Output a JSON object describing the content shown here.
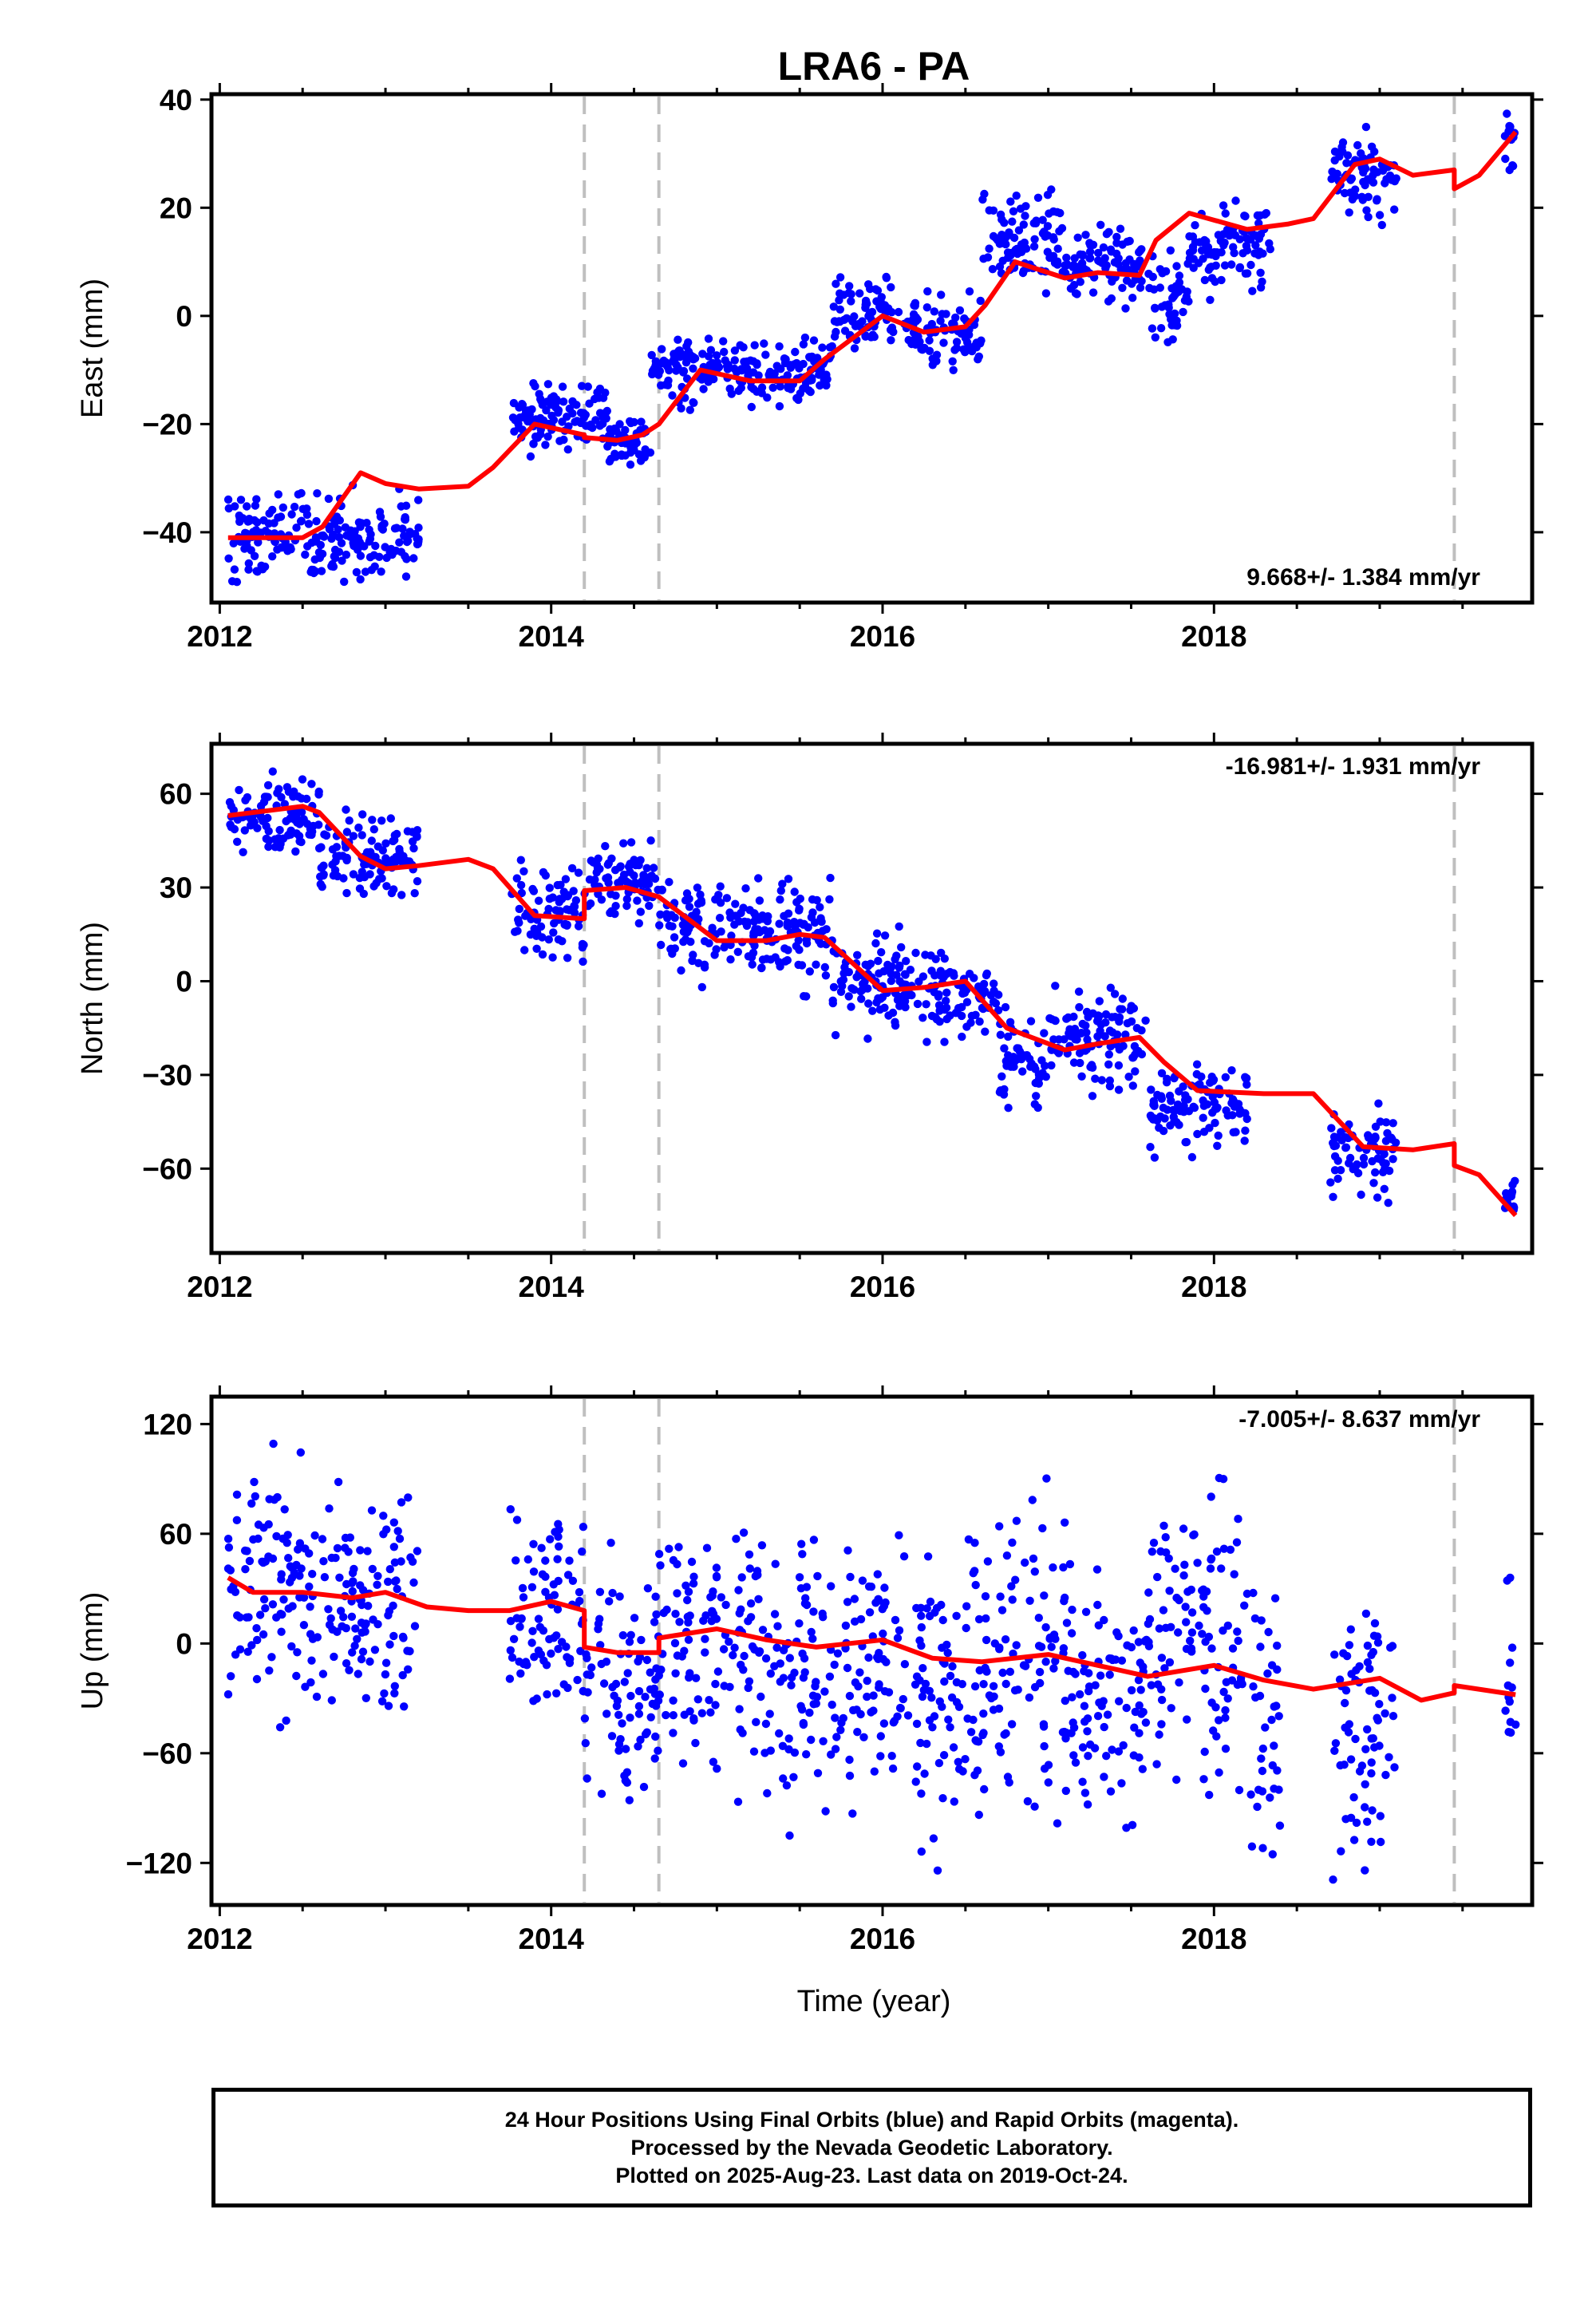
{
  "title": "LRA6 - PA",
  "xlabel": "Time (year)",
  "caption": [
    "24 Hour Positions Using Final Orbits (blue) and Rapid Orbits (magenta).",
    "Processed by the Nevada Geodetic Laboratory.",
    "Plotted on 2025-Aug-23. Last data on 2019-Oct-24."
  ],
  "colors": {
    "points": "#0000ff",
    "model": "#ff0000",
    "equipment_change": "#bfbfbf",
    "axes": "#000000"
  },
  "chart_data": [
    {
      "type": "scatter",
      "ylabel": "East (mm)",
      "rate_label": "9.668+/- 1.384 mm/yr",
      "rate_label_position": "bottom-right",
      "xlim": [
        2011.95,
        2019.92
      ],
      "ylim": [
        -53,
        41
      ],
      "xticks": [
        2012,
        2014,
        2016,
        2018
      ],
      "yticks": [
        -40,
        -20,
        0,
        20,
        40
      ],
      "equipment_changes": [
        2014.2,
        2014.65,
        2019.45
      ],
      "series": [
        {
          "kind": "points",
          "segments": [
            [
              2012.05,
              2013.2,
              -41,
              4
            ],
            [
              2013.75,
              2014.35,
              -18,
              3
            ],
            [
              2014.35,
              2014.6,
              -23,
              2.5
            ],
            [
              2014.6,
              2015.3,
              -10,
              3
            ],
            [
              2015.3,
              2015.7,
              -10,
              3
            ],
            [
              2015.7,
              2016.1,
              1,
              3
            ],
            [
              2016.1,
              2016.6,
              -3,
              3
            ],
            [
              2016.6,
              2017.1,
              14,
              4
            ],
            [
              2017.1,
              2017.6,
              9,
              3
            ],
            [
              2017.6,
              2017.85,
              3,
              4
            ],
            [
              2017.85,
              2018.35,
              13,
              4
            ],
            [
              2018.7,
              2019.1,
              26,
              4
            ],
            [
              2019.75,
              2019.82,
              32,
              3
            ]
          ]
        },
        {
          "kind": "model",
          "x": [
            2012.05,
            2012.5,
            2012.62,
            2012.85,
            2013.0,
            2013.2,
            2013.5,
            2013.65,
            2013.9,
            2014.2,
            2014.2,
            2014.4,
            2014.55,
            2014.65,
            2014.65,
            2014.9,
            2015.2,
            2015.5,
            2015.65,
            2016.0,
            2016.25,
            2016.5,
            2016.62,
            2016.8,
            2017.1,
            2017.3,
            2017.55,
            2017.65,
            2017.85,
            2018.2,
            2018.45,
            2018.6,
            2018.85,
            2019.0,
            2019.2,
            2019.45,
            2019.45,
            2019.6,
            2019.82
          ],
          "y": [
            -41,
            -41,
            -39,
            -29,
            -31,
            -32,
            -31.5,
            -28,
            -20,
            -22,
            -22.5,
            -23,
            -22,
            -20,
            -20,
            -10,
            -12,
            -12,
            -8,
            0,
            -3,
            -2,
            2,
            10,
            7,
            8,
            7.5,
            14,
            19,
            16,
            17,
            18,
            28,
            29,
            26,
            27,
            23.5,
            26,
            34
          ]
        }
      ]
    },
    {
      "type": "scatter",
      "ylabel": "North (mm)",
      "rate_label": "-16.981+/- 1.931 mm/yr",
      "rate_label_position": "top-right",
      "xlim": [
        2011.95,
        2019.92
      ],
      "ylim": [
        -87,
        76
      ],
      "xticks": [
        2012,
        2014,
        2016,
        2018
      ],
      "yticks": [
        -60,
        -30,
        0,
        30,
        60
      ],
      "equipment_changes": [
        2014.2,
        2014.65,
        2019.45
      ],
      "series": [
        {
          "kind": "points",
          "segments": [
            [
              2012.05,
              2012.6,
              52,
              6
            ],
            [
              2012.6,
              2013.2,
              40,
              6
            ],
            [
              2013.75,
              2014.2,
              22,
              6
            ],
            [
              2014.2,
              2014.65,
              32,
              5
            ],
            [
              2014.65,
              2015.3,
              18,
              7
            ],
            [
              2015.3,
              2015.7,
              15,
              8
            ],
            [
              2015.7,
              2016.3,
              0,
              7
            ],
            [
              2016.3,
              2016.7,
              -4,
              6
            ],
            [
              2016.7,
              2017.0,
              -25,
              7
            ],
            [
              2017.0,
              2017.6,
              -17,
              7
            ],
            [
              2017.6,
              2018.2,
              -40,
              7
            ],
            [
              2018.7,
              2019.1,
              -55,
              7
            ],
            [
              2019.75,
              2019.82,
              -70,
              3
            ]
          ]
        },
        {
          "kind": "model",
          "x": [
            2012.05,
            2012.5,
            2012.6,
            2012.85,
            2013.0,
            2013.2,
            2013.5,
            2013.65,
            2013.9,
            2014.2,
            2014.2,
            2014.45,
            2014.65,
            2014.65,
            2015.0,
            2015.3,
            2015.5,
            2015.65,
            2016.0,
            2016.25,
            2016.5,
            2016.75,
            2017.1,
            2017.3,
            2017.55,
            2017.7,
            2017.9,
            2018.3,
            2018.6,
            2018.9,
            2019.2,
            2019.45,
            2019.45,
            2019.6,
            2019.82
          ],
          "y": [
            53,
            56,
            54,
            40,
            36,
            37,
            39,
            36,
            21,
            20,
            29,
            30,
            27,
            27,
            13,
            13,
            15,
            14,
            -3,
            -2,
            0,
            -15,
            -22,
            -20,
            -18,
            -26,
            -35,
            -36,
            -36,
            -53,
            -54,
            -52,
            -59,
            -62,
            -75
          ]
        }
      ]
    },
    {
      "type": "scatter",
      "ylabel": "Up (mm)",
      "rate_label": "-7.005+/- 8.637 mm/yr",
      "rate_label_position": "top-right",
      "xlim": [
        2011.95,
        2019.92
      ],
      "ylim": [
        -143,
        135
      ],
      "xticks": [
        2012,
        2014,
        2016,
        2018
      ],
      "yticks": [
        -120,
        -60,
        0,
        60,
        120
      ],
      "equipment_changes": [
        2014.2,
        2014.65,
        2019.45
      ],
      "series": [
        {
          "kind": "points",
          "segments": [
            [
              2012.05,
              2012.6,
              30,
              30
            ],
            [
              2012.6,
              2013.2,
              20,
              30
            ],
            [
              2013.75,
              2014.2,
              15,
              30
            ],
            [
              2014.2,
              2014.65,
              -20,
              30
            ],
            [
              2014.65,
              2015.3,
              0,
              35
            ],
            [
              2015.3,
              2015.7,
              -15,
              35
            ],
            [
              2015.7,
              2016.3,
              -20,
              35
            ],
            [
              2016.3,
              2016.7,
              -25,
              35
            ],
            [
              2016.7,
              2017.1,
              -10,
              38
            ],
            [
              2017.1,
              2017.6,
              -30,
              35
            ],
            [
              2017.6,
              2018.2,
              5,
              38
            ],
            [
              2018.2,
              2018.4,
              -40,
              35
            ],
            [
              2018.7,
              2019.1,
              -40,
              40
            ],
            [
              2019.75,
              2019.82,
              -20,
              30
            ]
          ]
        },
        {
          "kind": "model",
          "x": [
            2012.05,
            2012.2,
            2012.5,
            2012.8,
            2013.0,
            2013.25,
            2013.5,
            2013.75,
            2014.0,
            2014.2,
            2014.2,
            2014.4,
            2014.65,
            2014.65,
            2015.0,
            2015.3,
            2015.6,
            2016.0,
            2016.3,
            2016.6,
            2017.0,
            2017.3,
            2017.6,
            2018.0,
            2018.3,
            2018.6,
            2019.0,
            2019.25,
            2019.45,
            2019.45,
            2019.82
          ],
          "y": [
            36,
            28,
            28,
            25,
            28,
            20,
            18,
            18,
            23,
            18,
            -2,
            -5,
            -5,
            3,
            8,
            2,
            -2,
            2,
            -8,
            -10,
            -6,
            -12,
            -18,
            -12,
            -20,
            -25,
            -19,
            -31,
            -27,
            -23,
            -28
          ]
        }
      ]
    }
  ]
}
